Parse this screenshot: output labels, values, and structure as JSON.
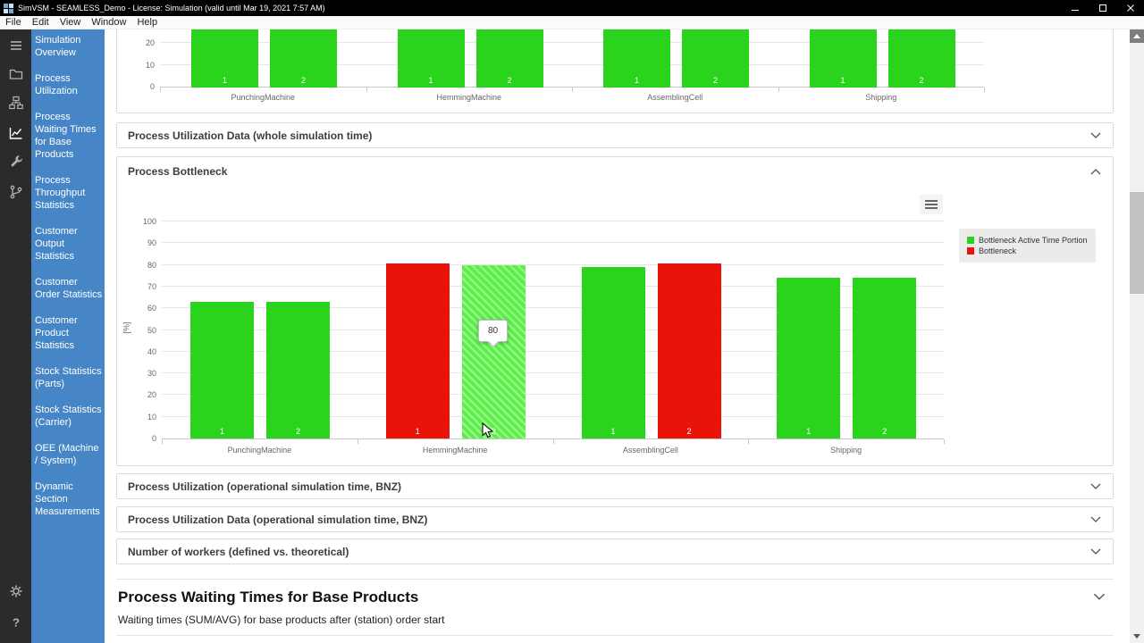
{
  "window": {
    "title": "SimVSM - SEAMLESS_Demo - License: Simulation (valid until Mar 19, 2021 7:57 AM)"
  },
  "menubar": {
    "items": [
      "File",
      "Edit",
      "View",
      "Window",
      "Help"
    ]
  },
  "icon_rail": {
    "icons": [
      "menu",
      "open-folder",
      "hierarchy",
      "line-chart",
      "wrench",
      "branch",
      "settings",
      "help"
    ],
    "active": "line-chart"
  },
  "sidebar": {
    "items": [
      "Simulation Overview",
      "Process Utilization",
      "Process Waiting Times for Base Products",
      "Process Throughput Statistics",
      "Customer Output Statistics",
      "Customer Order Statistics",
      "Customer Product Statistics",
      "Stock Statistics (Parts)",
      "Stock Statistics (Carrier)",
      "OEE (Machine / System)",
      "Dynamic Section Measurements"
    ]
  },
  "panels": {
    "utilization_data_whole": "Process Utilization Data (whole simulation time)",
    "bottleneck": "Process Bottleneck",
    "utilization_bnz": "Process Utilization (operational simulation time, BNZ)",
    "utilization_data_bnz": "Process Utilization Data (operational simulation time, BNZ)",
    "workers": "Number of workers (defined vs. theoretical)"
  },
  "section": {
    "title": "Process Waiting Times for Base Products",
    "subtitle": "Waiting times (SUM/AVG) for base products after (station) order start"
  },
  "colors": {
    "bar_green": "#2ad41c",
    "bar_green_hover": "#5bef48",
    "bar_red": "#e81309",
    "sidebar_bg": "#4686c6",
    "rail_bg": "#2b2b2b",
    "titlebar_bg": "#000000"
  },
  "chart_data": [
    {
      "id": "process-utilization-partial",
      "type": "bar",
      "note": "only bottom portion of chart visible; all bars clipped at top of viewport",
      "yticks_visible": [
        0,
        10,
        20
      ],
      "categories": [
        "PunchingMachine",
        "HemmingMachine",
        "AssemblingCell",
        "Shipping"
      ],
      "bars": [
        {
          "category": "PunchingMachine",
          "label": "1",
          "value": null,
          "clipped_top": true
        },
        {
          "category": "PunchingMachine",
          "label": "2",
          "value": null,
          "clipped_top": true
        },
        {
          "category": "HemmingMachine",
          "label": "1",
          "value": null,
          "clipped_top": true
        },
        {
          "category": "HemmingMachine",
          "label": "2",
          "value": null,
          "clipped_top": true
        },
        {
          "category": "AssemblingCell",
          "label": "1",
          "value": null,
          "clipped_top": true
        },
        {
          "category": "AssemblingCell",
          "label": "2",
          "value": null,
          "clipped_top": true
        },
        {
          "category": "Shipping",
          "label": "1",
          "value": null,
          "clipped_top": true
        },
        {
          "category": "Shipping",
          "label": "2",
          "value": null,
          "clipped_top": true
        }
      ]
    },
    {
      "id": "process-bottleneck",
      "type": "bar",
      "ylabel": "[%]",
      "ylim": [
        0,
        100
      ],
      "yticks": [
        0,
        10,
        20,
        30,
        40,
        50,
        60,
        70,
        80,
        90,
        100
      ],
      "categories": [
        "PunchingMachine",
        "HemmingMachine",
        "AssemblingCell",
        "Shipping"
      ],
      "legend": [
        {
          "label": "Bottleneck Active Time Portion",
          "color": "#2ad41c"
        },
        {
          "label": "Bottleneck",
          "color": "#e81309"
        }
      ],
      "bars": [
        {
          "category": "PunchingMachine",
          "label": "1",
          "value": 63,
          "series": "Bottleneck Active Time Portion"
        },
        {
          "category": "PunchingMachine",
          "label": "2",
          "value": 63,
          "series": "Bottleneck Active Time Portion"
        },
        {
          "category": "HemmingMachine",
          "label": "1",
          "value": 80.5,
          "series": "Bottleneck"
        },
        {
          "category": "HemmingMachine",
          "label": "2",
          "value": 80,
          "series": "Bottleneck Active Time Portion",
          "hovered": true
        },
        {
          "category": "AssemblingCell",
          "label": "1",
          "value": 79,
          "series": "Bottleneck Active Time Portion"
        },
        {
          "category": "AssemblingCell",
          "label": "2",
          "value": 80.5,
          "series": "Bottleneck"
        },
        {
          "category": "Shipping",
          "label": "1",
          "value": 74,
          "series": "Bottleneck Active Time Portion"
        },
        {
          "category": "Shipping",
          "label": "2",
          "value": 74,
          "series": "Bottleneck Active Time Portion"
        }
      ],
      "tooltip": {
        "value": "80",
        "target": "HemmingMachine 2"
      }
    }
  ]
}
